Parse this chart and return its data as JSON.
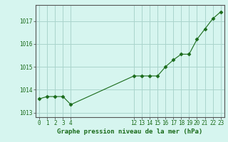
{
  "x": [
    0,
    1,
    2,
    3,
    4,
    12,
    13,
    14,
    15,
    16,
    17,
    18,
    19,
    20,
    21,
    22,
    23
  ],
  "y": [
    1013.6,
    1013.7,
    1013.7,
    1013.7,
    1013.35,
    1014.6,
    1014.6,
    1014.6,
    1014.6,
    1015.0,
    1015.3,
    1015.55,
    1015.55,
    1016.2,
    1016.65,
    1017.1,
    1017.4
  ],
  "xlim": [
    -0.5,
    23.5
  ],
  "ylim": [
    1012.8,
    1017.7
  ],
  "yticks": [
    1013,
    1014,
    1015,
    1016,
    1017
  ],
  "xticks": [
    0,
    1,
    2,
    3,
    4,
    12,
    13,
    14,
    15,
    16,
    17,
    18,
    19,
    20,
    21,
    22,
    23
  ],
  "xlabel": "Graphe pression niveau de la mer (hPa)",
  "line_color": "#1a6b1a",
  "marker_color": "#1a6b1a",
  "bg_color": "#d6f5ef",
  "grid_color": "#aad4cc",
  "title_color": "#1a6b1a",
  "axis_color": "#555555",
  "tick_color": "#1a6b1a"
}
